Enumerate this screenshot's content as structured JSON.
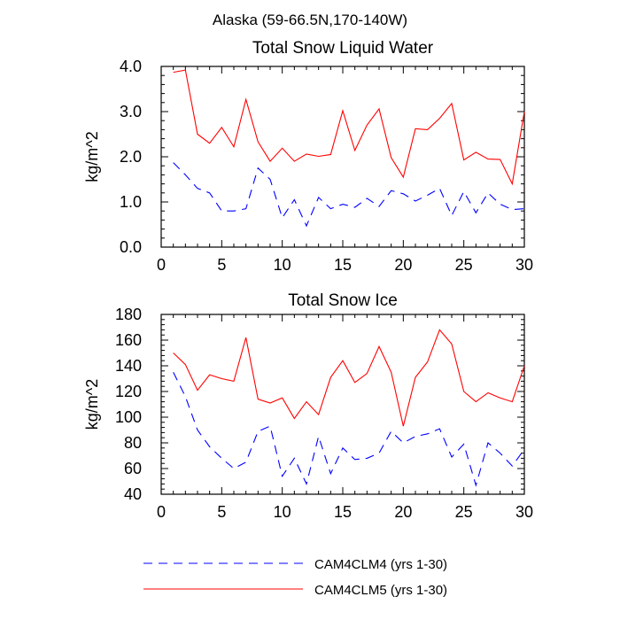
{
  "suptitle": "Alaska (59-66.5N,170-140W)",
  "colors": {
    "clm4": "#0000ff",
    "clm5": "#ff0000"
  },
  "legend": {
    "items": [
      {
        "label": "CAM4CLM4 (yrs 1-30)",
        "color": "#0000ff",
        "dash": "dashed"
      },
      {
        "label": "CAM4CLM5 (yrs 1-30)",
        "color": "#ff0000",
        "dash": "solid"
      }
    ]
  },
  "chart_data": [
    {
      "type": "line",
      "title": "Total Snow Liquid Water",
      "xlabel": "",
      "ylabel": "kg/m^2",
      "xlim": [
        0,
        30
      ],
      "ylim": [
        0.0,
        4.0
      ],
      "xticks": [
        0,
        5,
        10,
        15,
        20,
        25,
        30
      ],
      "xtick_labels": [
        "0",
        "5",
        "10",
        "15",
        "20",
        "25",
        "30"
      ],
      "yticks": [
        0.0,
        1.0,
        2.0,
        3.0,
        4.0
      ],
      "ytick_labels": [
        "0.0",
        "1.0",
        "2.0",
        "3.0",
        "4.0"
      ],
      "x": [
        1,
        2,
        3,
        4,
        5,
        6,
        7,
        8,
        9,
        10,
        11,
        12,
        13,
        14,
        15,
        16,
        17,
        18,
        19,
        20,
        21,
        22,
        23,
        24,
        25,
        26,
        27,
        28,
        29,
        30
      ],
      "series": [
        {
          "name": "CAM4CLM4 (yrs 1-30)",
          "color": "#0000ff",
          "dash": "dashed",
          "values": [
            1.87,
            1.6,
            1.3,
            1.2,
            0.8,
            0.8,
            0.85,
            1.75,
            1.5,
            0.65,
            1.05,
            0.47,
            1.1,
            0.85,
            0.95,
            0.88,
            1.08,
            0.9,
            1.25,
            1.18,
            1.02,
            1.15,
            1.3,
            0.7,
            1.23,
            0.76,
            1.2,
            0.95,
            0.83,
            0.85
          ]
        },
        {
          "name": "CAM4CLM5 (yrs 1-30)",
          "color": "#ff0000",
          "dash": "solid",
          "values": [
            3.87,
            3.92,
            2.5,
            2.3,
            2.65,
            2.22,
            3.27,
            2.33,
            1.9,
            2.19,
            1.9,
            2.06,
            2.01,
            2.05,
            3.02,
            2.14,
            2.7,
            3.06,
            1.98,
            1.55,
            2.62,
            2.6,
            2.85,
            3.18,
            1.93,
            2.1,
            1.95,
            1.94,
            1.4,
            3.0
          ]
        }
      ]
    },
    {
      "type": "line",
      "title": "Total Snow Ice",
      "xlabel": "",
      "ylabel": "kg/m^2",
      "xlim": [
        0,
        30
      ],
      "ylim": [
        40,
        180
      ],
      "xticks": [
        0,
        5,
        10,
        15,
        20,
        25,
        30
      ],
      "xtick_labels": [
        "0",
        "5",
        "10",
        "15",
        "20",
        "25",
        "30"
      ],
      "yticks": [
        40,
        60,
        80,
        100,
        120,
        140,
        160,
        180
      ],
      "ytick_labels": [
        "40",
        "60",
        "80",
        "100",
        "120",
        "140",
        "160",
        "180"
      ],
      "x": [
        1,
        2,
        3,
        4,
        5,
        6,
        7,
        8,
        9,
        10,
        11,
        12,
        13,
        14,
        15,
        16,
        17,
        18,
        19,
        20,
        21,
        22,
        23,
        24,
        25,
        26,
        27,
        28,
        29,
        30
      ],
      "series": [
        {
          "name": "CAM4CLM4 (yrs 1-30)",
          "color": "#0000ff",
          "dash": "dashed",
          "values": [
            135,
            116,
            90,
            77,
            68,
            60,
            65,
            89,
            93,
            54,
            68,
            48,
            85,
            56,
            76,
            67,
            68,
            72,
            89,
            80,
            85,
            87,
            91,
            69,
            79,
            47,
            80,
            72,
            62,
            75
          ]
        },
        {
          "name": "CAM4CLM5 (yrs 1-30)",
          "color": "#ff0000",
          "dash": "solid",
          "values": [
            150,
            141,
            121,
            133,
            130,
            128,
            162,
            114,
            111,
            115,
            99,
            112,
            102,
            131,
            144,
            127,
            134,
            155,
            135,
            93,
            131,
            143,
            168,
            157,
            120,
            112,
            119,
            115,
            112,
            140
          ]
        }
      ]
    }
  ]
}
